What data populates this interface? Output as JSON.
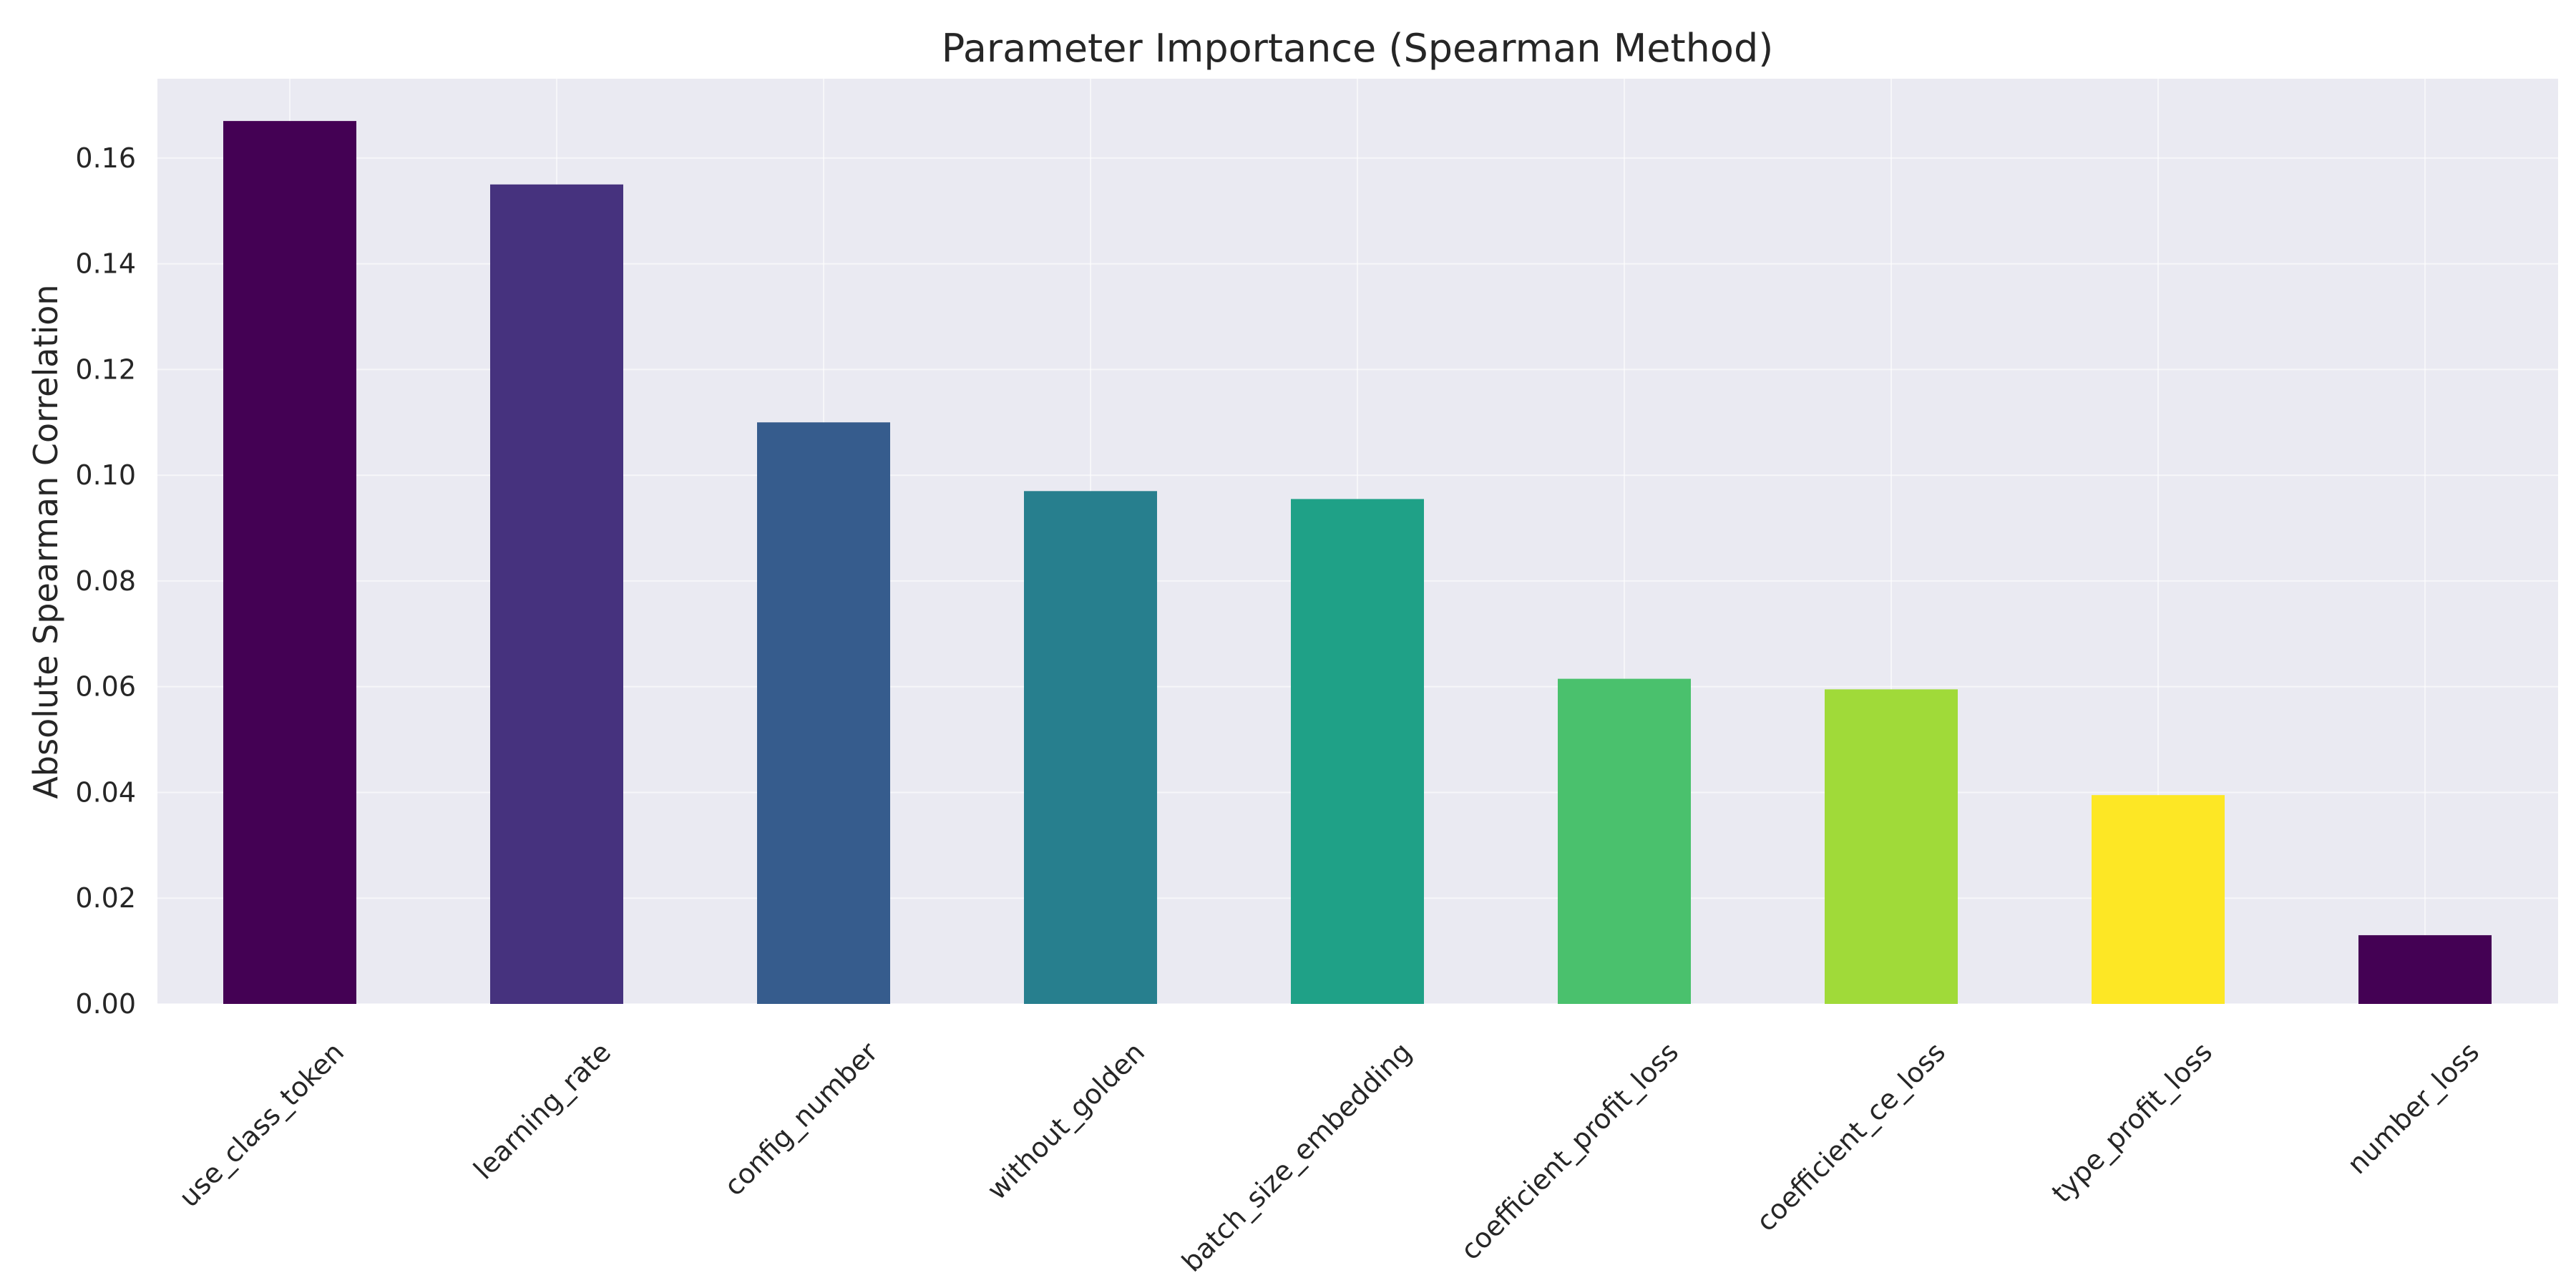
{
  "chart_data": {
    "type": "bar",
    "title": "Parameter Importance (Spearman Method)",
    "xlabel": "",
    "ylabel": "Absolute Spearman Correlation",
    "categories": [
      "use_class_token",
      "learning_rate",
      "config_number",
      "without_golden",
      "batch_size_embedding",
      "coefficient_profit_loss",
      "coefficient_ce_loss",
      "type_profit_loss",
      "number_loss"
    ],
    "values": [
      0.167,
      0.155,
      0.11,
      0.097,
      0.0955,
      0.0615,
      0.0595,
      0.0395,
      0.013
    ],
    "colors": [
      "#440154",
      "#46327e",
      "#365c8d",
      "#277f8e",
      "#1fa187",
      "#4ac16d",
      "#a0da39",
      "#fde725",
      "#440154"
    ],
    "ylim": [
      0,
      0.175
    ],
    "yticks": [
      "0.00",
      "0.02",
      "0.04",
      "0.06",
      "0.08",
      "0.10",
      "0.12",
      "0.14",
      "0.16"
    ],
    "grid": true,
    "background": "#eaeaf2"
  }
}
